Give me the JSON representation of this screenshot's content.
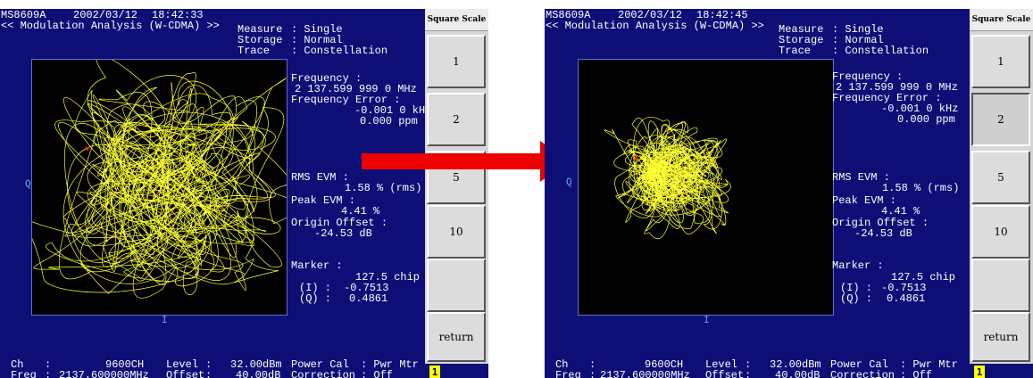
{
  "left": {
    "header": {
      "model": "MS8609A",
      "date": "2002/03/12",
      "time": "18:42:33",
      "mode": "<< Modulation Analysis (W-CDMA) >>"
    },
    "settings": {
      "measure_label": "Measure",
      "measure_value": ": Single",
      "storage_label": "Storage",
      "storage_value": ": Normal",
      "trace_label": "Trace",
      "trace_value": ": Constellation"
    },
    "results": {
      "frequency_label": "Frequency :",
      "frequency_value": "2 137.599 999 0 MHz",
      "freq_error_label": "Frequency Error :",
      "freq_error_khz": "-0.001 0 kHz",
      "freq_error_ppm": "0.000 ppm",
      "rms_evm_label": "RMS EVM :",
      "rms_evm_value": "1.58 % (rms)",
      "peak_evm_label": "Peak EVM :",
      "peak_evm_value": "4.41 %",
      "origin_offset_label": "Origin Offset :",
      "origin_offset_value": "-24.53 dB",
      "marker_label": "Marker :",
      "marker_chip": "127.5 chip",
      "marker_i_label": "(I) :",
      "marker_i_value": "-0.7513",
      "marker_q_label": "(Q) :",
      "marker_q_value": "0.4861"
    },
    "plot": {
      "q_axis": "Q",
      "i_axis": "I"
    },
    "footer": {
      "ch_label": "Ch",
      "ch_sep": ":",
      "ch_value": "9600CH",
      "level_label": "Level",
      "level_sep": ":",
      "level_value": "32.00dBm",
      "powercal_label": "Power Cal",
      "powercal_value": ": Pwr Mtr",
      "freq_label": "Freq",
      "freq_sep": ":",
      "freq_value": "2137.600000MHz",
      "offset_label": "Offset",
      "offset_sep": ":",
      "offset_value": "40.00dB",
      "correction_label": "Correction",
      "correction_value": ": Off"
    },
    "softkeys": {
      "title": "Square Scale",
      "buttons": [
        "1",
        "2",
        "5",
        "10",
        "",
        "return"
      ],
      "page": "1"
    }
  },
  "right": {
    "header": {
      "model": "MS8609A",
      "date": "2002/03/12",
      "time": "18:42:45",
      "mode": "<< Modulation Analysis (W-CDMA) >>"
    },
    "settings": {
      "measure_label": "Measure",
      "measure_value": ": Single",
      "storage_label": "Storage",
      "storage_value": ": Normal",
      "trace_label": "Trace",
      "trace_value": ": Constellation"
    },
    "results": {
      "frequency_label": "Frequency :",
      "frequency_value": "2 137.599 999 0 MHz",
      "freq_error_label": "Frequency Error :",
      "freq_error_khz": "-0.001 0 kHz",
      "freq_error_ppm": "0.000 ppm",
      "rms_evm_label": "RMS EVM :",
      "rms_evm_value": "1.58 % (rms)",
      "peak_evm_label": "Peak EVM :",
      "peak_evm_value": "4.41 %",
      "origin_offset_label": "Origin Offset :",
      "origin_offset_value": "-24.53 dB",
      "marker_label": "Marker :",
      "marker_chip": "127.5 chip",
      "marker_i_label": "(I) :",
      "marker_i_value": "-0.7513",
      "marker_q_label": "(Q) :",
      "marker_q_value": "0.4861"
    },
    "plot": {
      "q_axis": "Q",
      "i_axis": "I"
    },
    "footer": {
      "ch_label": "Ch",
      "ch_sep": ":",
      "ch_value": "9600CH",
      "level_label": "Level",
      "level_sep": ":",
      "level_value": "32.00dBm",
      "powercal_label": "Power Cal",
      "powercal_value": ": Pwr Mtr",
      "freq_label": "Freq",
      "freq_sep": ":",
      "freq_value": "2137.600000MHz",
      "offset_label": "Offset",
      "offset_sep": ":",
      "offset_value": "40.00dB",
      "correction_label": "Correction",
      "correction_value": ": Off"
    },
    "softkeys": {
      "title": "Square Scale",
      "buttons": [
        "1",
        "2",
        "5",
        "10",
        "",
        "return"
      ],
      "page": "1"
    }
  },
  "colors": {
    "screen_bg": "#0d0f77",
    "trace": "#ffff33",
    "marker": "#ff2020",
    "arrow": "#ee0000",
    "page_indicator": "#ffff00"
  },
  "pressed_key": {
    "left": "",
    "right": "2"
  }
}
